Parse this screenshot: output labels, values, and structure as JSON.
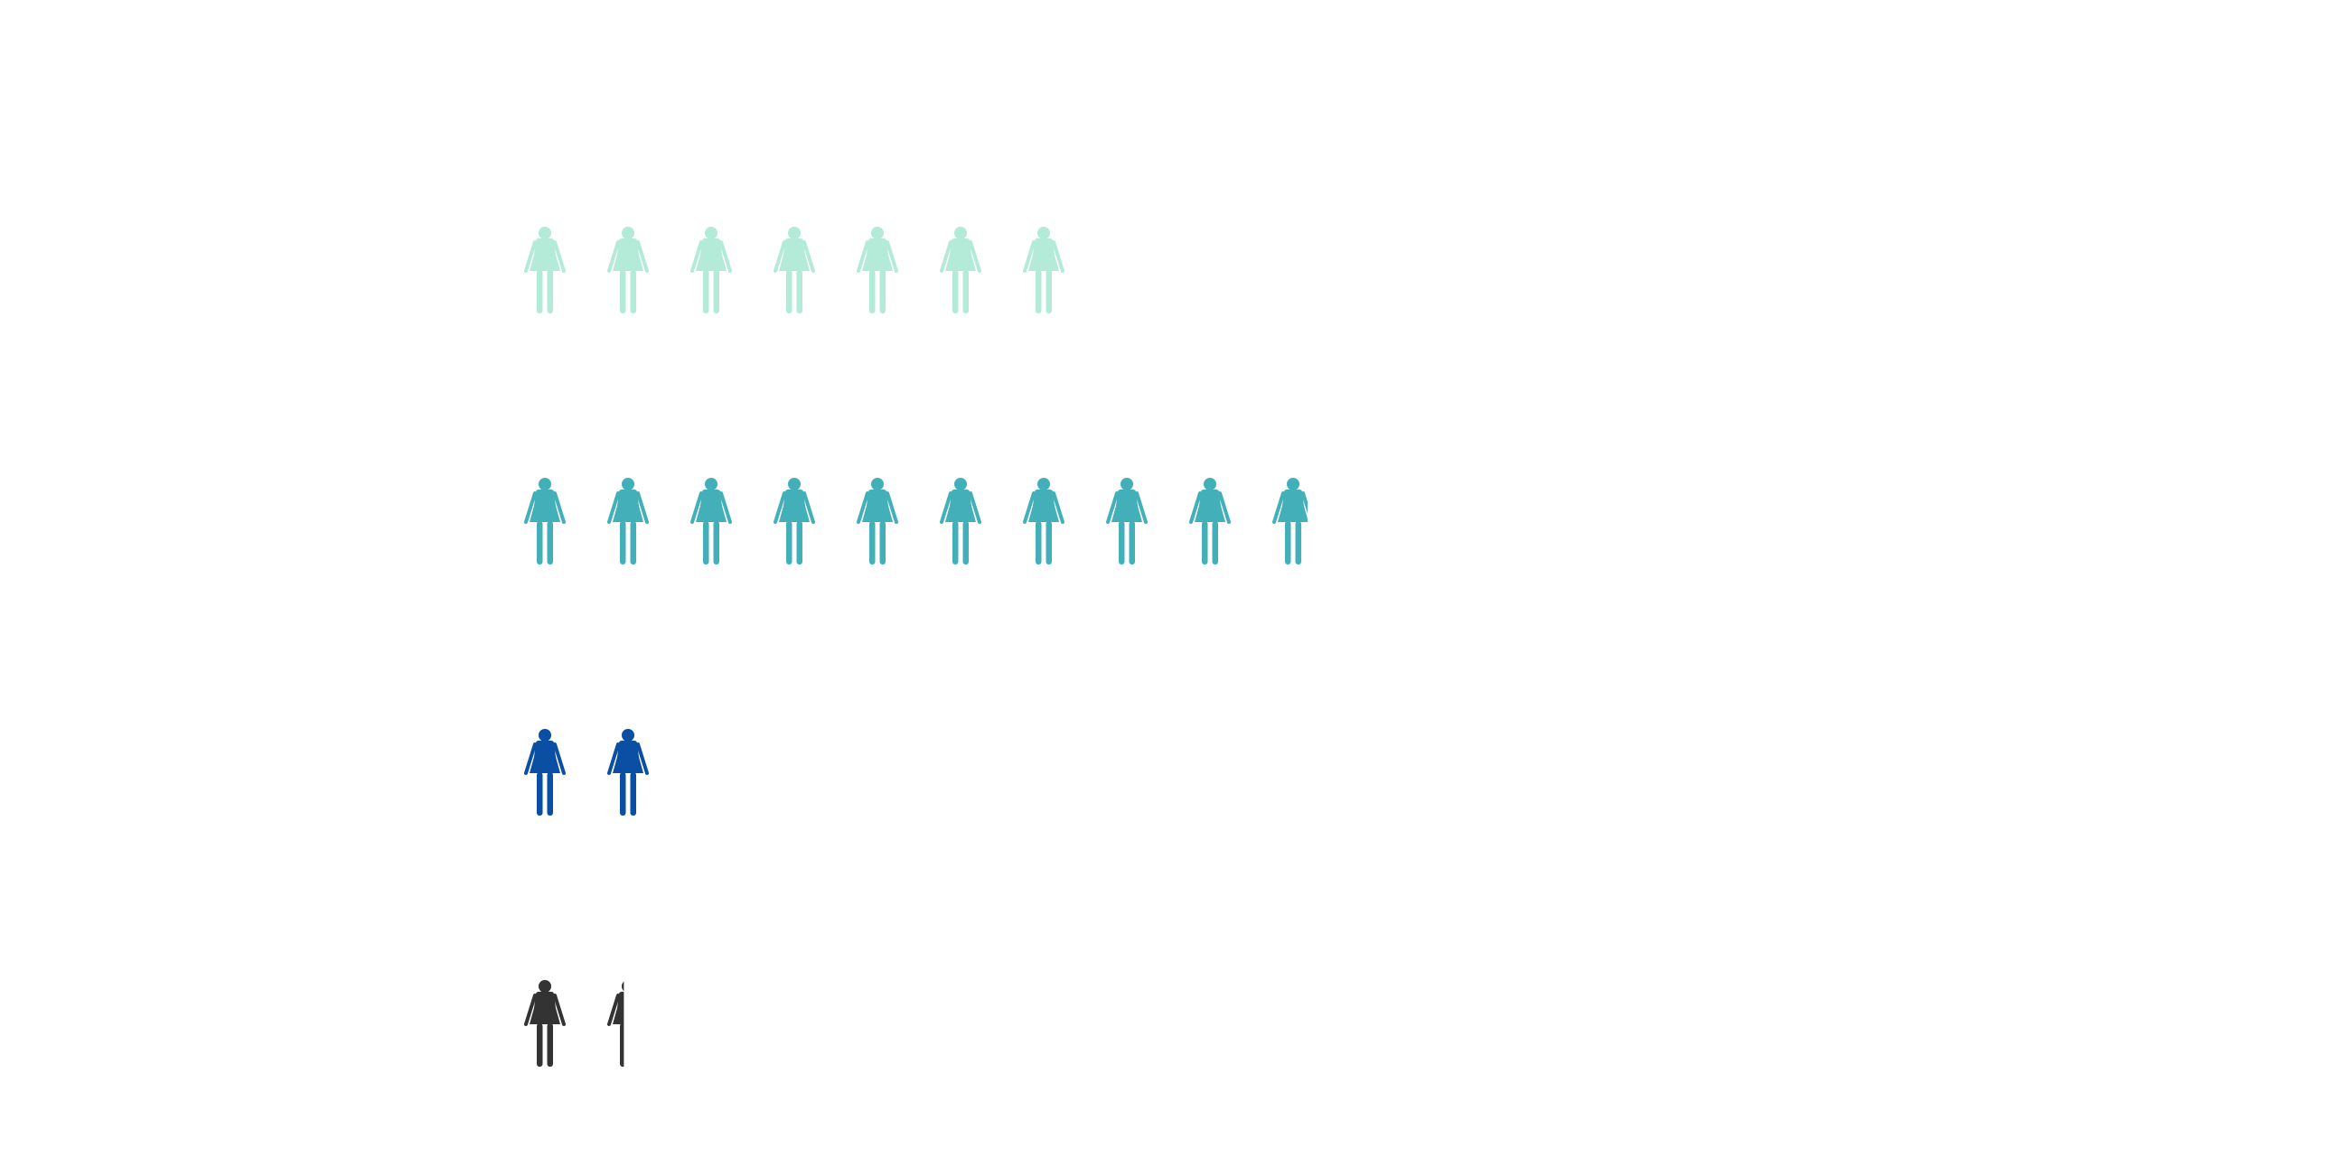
{
  "chart_data": {
    "type": "pictograph",
    "title": "",
    "icon": "woman-icon",
    "categories": [
      "",
      "",
      "",
      ""
    ],
    "values": [
      7,
      9.85,
      2,
      1.4
    ],
    "colors": [
      "#b4ebd8",
      "#43b0b9",
      "#0a4fa3",
      "#333333"
    ],
    "legend": "none",
    "grid": false
  }
}
